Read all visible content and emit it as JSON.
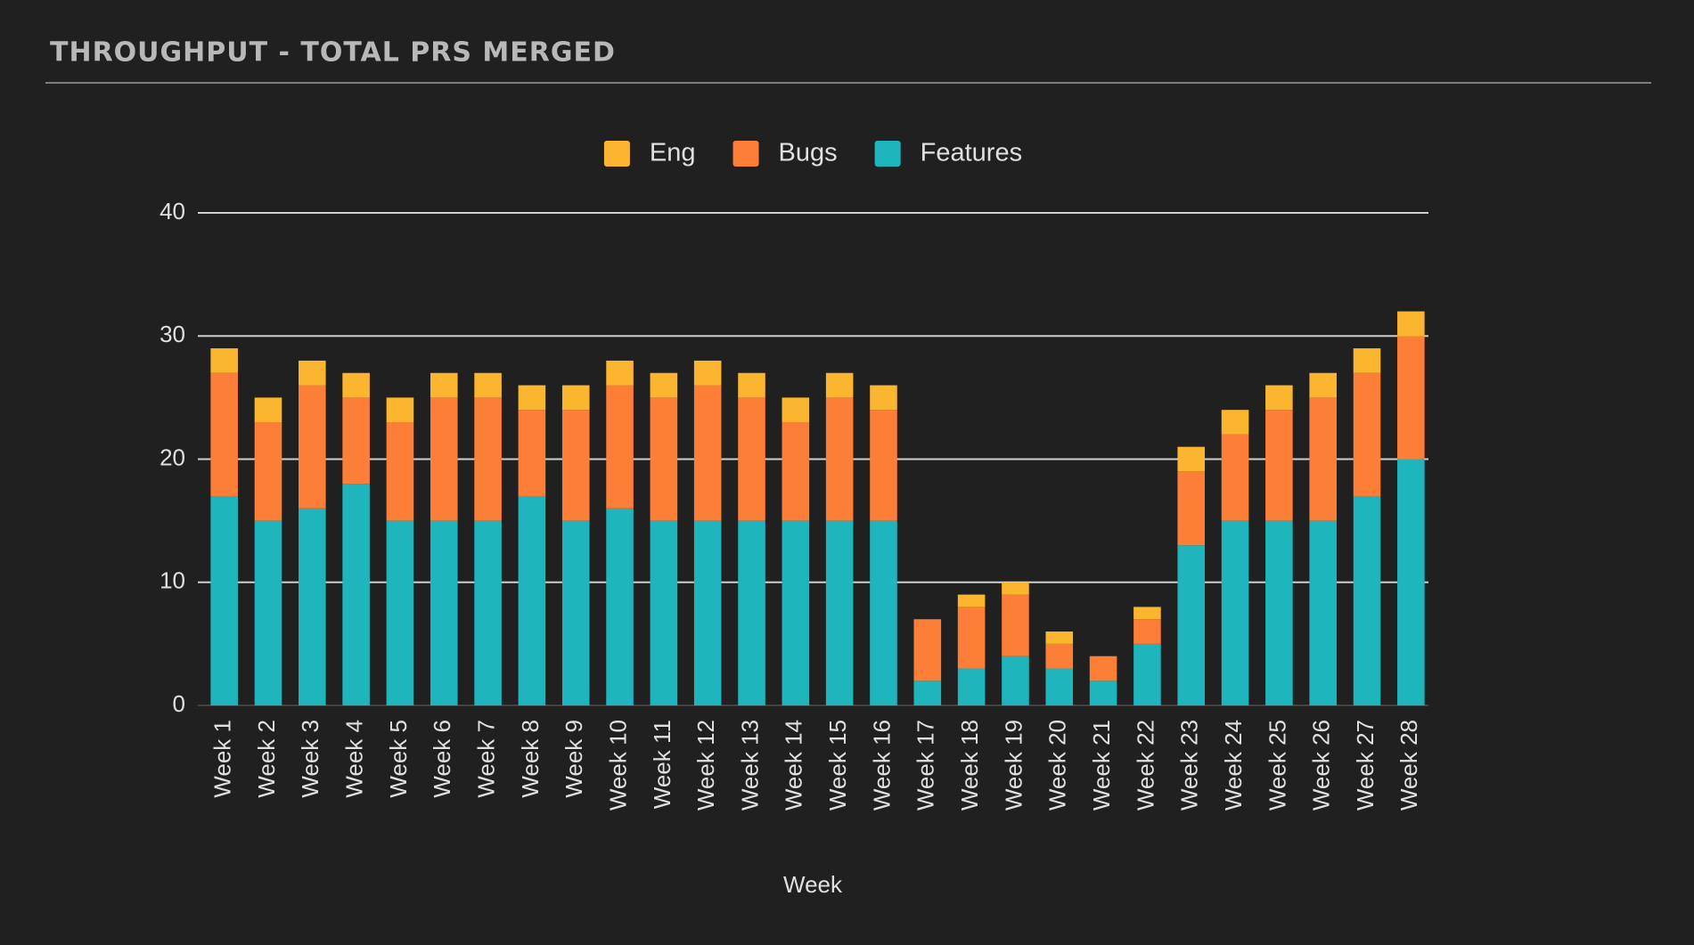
{
  "chart_data": {
    "type": "stacked_bar",
    "title": "THROUGHPUT - TOTAL PRS MERGED",
    "x_label": "Week",
    "categories": [
      "Week 1",
      "Week 2",
      "Week 3",
      "Week 4",
      "Week 5",
      "Week 6",
      "Week 7",
      "Week 8",
      "Week 9",
      "Week 10",
      "Week 11",
      "Week 12",
      "Week 13",
      "Week 14",
      "Week 15",
      "Week 16",
      "Week 17",
      "Week 18",
      "Week 19",
      "Week 20",
      "Week 21",
      "Week 22",
      "Week 23",
      "Week 24",
      "Week 25",
      "Week 26",
      "Week 27",
      "Week 28"
    ],
    "series": [
      {
        "name": "Features",
        "color": "#1fb5bc",
        "values": [
          17,
          15,
          16,
          18,
          15,
          15,
          15,
          17,
          15,
          16,
          15,
          15,
          15,
          15,
          15,
          15,
          2,
          3,
          4,
          3,
          2,
          5,
          13,
          15,
          15,
          15,
          17,
          20
        ]
      },
      {
        "name": "Bugs",
        "color": "#fd7e36",
        "values": [
          10,
          8,
          10,
          7,
          8,
          10,
          10,
          7,
          9,
          10,
          10,
          11,
          10,
          8,
          10,
          9,
          5,
          5,
          5,
          2,
          2,
          2,
          6,
          7,
          9,
          10,
          10,
          10
        ]
      },
      {
        "name": "Eng",
        "color": "#fbb52f",
        "values": [
          2,
          2,
          2,
          2,
          2,
          2,
          2,
          2,
          2,
          2,
          2,
          2,
          2,
          2,
          2,
          2,
          0,
          1,
          1,
          1,
          0,
          1,
          2,
          2,
          2,
          2,
          2,
          2
        ]
      }
    ],
    "ylim": [
      0,
      40
    ],
    "yticks": [
      0,
      10,
      20,
      30,
      40
    ],
    "grid": true,
    "legend": "top"
  }
}
